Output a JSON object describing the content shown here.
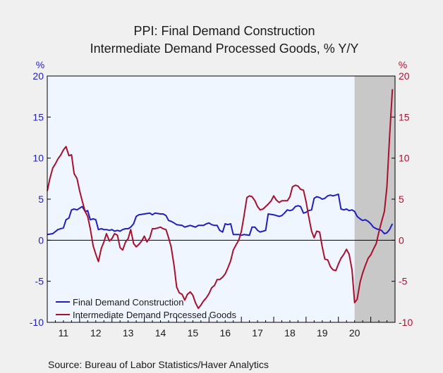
{
  "chart_data": {
    "type": "line",
    "title": "PPI: Final Demand Construction",
    "subtitle": "Intermediate Demand Processed Goods, % Y/Y",
    "y_unit_left": "%",
    "y_unit_right": "%",
    "ylim": [
      -10,
      20
    ],
    "yticks": [
      -10,
      -5,
      0,
      5,
      10,
      15,
      20
    ],
    "xlim": [
      2010.5,
      2021.25
    ],
    "xticks": [
      {
        "label": "11",
        "at": 2011.0
      },
      {
        "label": "12",
        "at": 2012.0
      },
      {
        "label": "13",
        "at": 2013.0
      },
      {
        "label": "14",
        "at": 2014.0
      },
      {
        "label": "15",
        "at": 2015.0
      },
      {
        "label": "16",
        "at": 2016.0
      },
      {
        "label": "17",
        "at": 2017.0
      },
      {
        "label": "18",
        "at": 2018.0
      },
      {
        "label": "19",
        "at": 2019.0
      },
      {
        "label": "20",
        "at": 2020.0
      }
    ],
    "recession_shading": [
      2020.0,
      2021.25
    ],
    "legend_position": "bottom-left",
    "series": [
      {
        "name": "Final Demand Construction",
        "color": "#1f1fbf",
        "points": [
          [
            2010.5,
            0.7
          ],
          [
            2010.67,
            0.8
          ],
          [
            2010.83,
            1.3
          ],
          [
            2011.0,
            1.5
          ],
          [
            2011.08,
            2.5
          ],
          [
            2011.17,
            2.7
          ],
          [
            2011.25,
            3.7
          ],
          [
            2011.33,
            3.8
          ],
          [
            2011.42,
            3.7
          ],
          [
            2011.5,
            3.9
          ],
          [
            2011.58,
            4.1
          ],
          [
            2011.67,
            3.5
          ],
          [
            2011.75,
            3.6
          ],
          [
            2011.83,
            2.5
          ],
          [
            2011.92,
            2.6
          ],
          [
            2012.0,
            2.5
          ],
          [
            2012.08,
            1.3
          ],
          [
            2012.17,
            1.4
          ],
          [
            2012.25,
            1.3
          ],
          [
            2012.33,
            1.3
          ],
          [
            2012.42,
            1.2
          ],
          [
            2012.5,
            1.3
          ],
          [
            2012.58,
            1.1
          ],
          [
            2012.67,
            1.2
          ],
          [
            2012.75,
            1.1
          ],
          [
            2012.83,
            1.3
          ],
          [
            2012.92,
            1.4
          ],
          [
            2013.0,
            1.4
          ],
          [
            2013.08,
            1.6
          ],
          [
            2013.17,
            2.0
          ],
          [
            2013.25,
            2.9
          ],
          [
            2013.33,
            3.1
          ],
          [
            2013.5,
            3.2
          ],
          [
            2013.67,
            3.3
          ],
          [
            2013.75,
            3.1
          ],
          [
            2013.83,
            3.3
          ],
          [
            2014.0,
            3.2
          ],
          [
            2014.08,
            3.2
          ],
          [
            2014.17,
            3.0
          ],
          [
            2014.25,
            2.4
          ],
          [
            2014.33,
            2.3
          ],
          [
            2014.42,
            2.1
          ],
          [
            2014.5,
            1.9
          ],
          [
            2014.67,
            1.8
          ],
          [
            2014.75,
            1.6
          ],
          [
            2014.83,
            1.7
          ],
          [
            2014.92,
            1.8
          ],
          [
            2015.0,
            1.7
          ],
          [
            2015.08,
            1.6
          ],
          [
            2015.17,
            1.8
          ],
          [
            2015.33,
            1.8
          ],
          [
            2015.42,
            2.0
          ],
          [
            2015.5,
            2.1
          ],
          [
            2015.58,
            1.9
          ],
          [
            2015.67,
            1.8
          ],
          [
            2015.75,
            1.8
          ],
          [
            2015.83,
            1.2
          ],
          [
            2015.92,
            1.0
          ],
          [
            2016.0,
            2.0
          ],
          [
            2016.08,
            1.9
          ],
          [
            2016.17,
            2.0
          ],
          [
            2016.25,
            0.7
          ],
          [
            2016.42,
            0.7
          ],
          [
            2016.5,
            0.6
          ],
          [
            2016.58,
            0.7
          ],
          [
            2016.75,
            0.6
          ],
          [
            2016.83,
            1.6
          ],
          [
            2016.92,
            1.6
          ],
          [
            2017.0,
            1.2
          ],
          [
            2017.08,
            1.0
          ],
          [
            2017.17,
            1.1
          ],
          [
            2017.25,
            1.2
          ],
          [
            2017.33,
            3.2
          ],
          [
            2017.5,
            3.1
          ],
          [
            2017.67,
            2.9
          ],
          [
            2017.75,
            3.0
          ],
          [
            2017.83,
            3.3
          ],
          [
            2017.92,
            3.7
          ],
          [
            2018.0,
            3.6
          ],
          [
            2018.08,
            3.7
          ],
          [
            2018.17,
            4.1
          ],
          [
            2018.25,
            4.2
          ],
          [
            2018.33,
            4.1
          ],
          [
            2018.42,
            3.3
          ],
          [
            2018.5,
            3.4
          ],
          [
            2018.58,
            3.6
          ],
          [
            2018.67,
            3.7
          ],
          [
            2018.75,
            5.1
          ],
          [
            2018.83,
            5.3
          ],
          [
            2018.92,
            5.2
          ],
          [
            2019.0,
            5.0
          ],
          [
            2019.08,
            5.1
          ],
          [
            2019.17,
            5.4
          ],
          [
            2019.25,
            5.5
          ],
          [
            2019.33,
            5.4
          ],
          [
            2019.42,
            5.5
          ],
          [
            2019.5,
            5.6
          ],
          [
            2019.58,
            3.8
          ],
          [
            2019.67,
            3.7
          ],
          [
            2019.75,
            3.8
          ],
          [
            2019.83,
            3.6
          ],
          [
            2019.92,
            3.7
          ],
          [
            2020.0,
            3.5
          ],
          [
            2020.08,
            2.9
          ],
          [
            2020.17,
            2.6
          ],
          [
            2020.25,
            2.4
          ],
          [
            2020.33,
            2.5
          ],
          [
            2020.42,
            2.3
          ],
          [
            2020.5,
            2.0
          ],
          [
            2020.58,
            1.6
          ],
          [
            2020.67,
            1.4
          ],
          [
            2020.75,
            1.3
          ],
          [
            2020.83,
            1.2
          ],
          [
            2020.92,
            0.8
          ],
          [
            2021.0,
            0.9
          ],
          [
            2021.08,
            1.3
          ],
          [
            2021.17,
            2.0
          ]
        ]
      },
      {
        "name": "Intermediate Demand Processed Goods",
        "color": "#a8102e",
        "points": [
          [
            2010.5,
            6.0
          ],
          [
            2010.58,
            7.5
          ],
          [
            2010.67,
            8.8
          ],
          [
            2010.75,
            9.3
          ],
          [
            2010.83,
            9.9
          ],
          [
            2010.92,
            10.4
          ],
          [
            2011.0,
            11.0
          ],
          [
            2011.08,
            11.4
          ],
          [
            2011.17,
            10.3
          ],
          [
            2011.25,
            10.4
          ],
          [
            2011.33,
            8.1
          ],
          [
            2011.42,
            7.5
          ],
          [
            2011.5,
            6.0
          ],
          [
            2011.58,
            4.8
          ],
          [
            2011.67,
            3.5
          ],
          [
            2011.75,
            2.9
          ],
          [
            2011.83,
            1.4
          ],
          [
            2011.92,
            -0.7
          ],
          [
            2012.0,
            -1.7
          ],
          [
            2012.08,
            -2.6
          ],
          [
            2012.17,
            -1.0
          ],
          [
            2012.25,
            -0.2
          ],
          [
            2012.33,
            0.8
          ],
          [
            2012.42,
            -0.1
          ],
          [
            2012.5,
            0.2
          ],
          [
            2012.58,
            0.8
          ],
          [
            2012.67,
            0.6
          ],
          [
            2012.75,
            -0.9
          ],
          [
            2012.83,
            -1.2
          ],
          [
            2012.92,
            -0.2
          ],
          [
            2013.0,
            0.2
          ],
          [
            2013.08,
            1.3
          ],
          [
            2013.17,
            -0.4
          ],
          [
            2013.25,
            -0.8
          ],
          [
            2013.33,
            -0.5
          ],
          [
            2013.42,
            -0.1
          ],
          [
            2013.5,
            0.5
          ],
          [
            2013.58,
            -0.2
          ],
          [
            2013.67,
            0.3
          ],
          [
            2013.75,
            1.4
          ],
          [
            2013.83,
            1.4
          ],
          [
            2013.92,
            1.5
          ],
          [
            2014.0,
            1.6
          ],
          [
            2014.08,
            1.4
          ],
          [
            2014.17,
            1.3
          ],
          [
            2014.25,
            0.3
          ],
          [
            2014.33,
            -0.8
          ],
          [
            2014.42,
            -3.1
          ],
          [
            2014.5,
            -5.7
          ],
          [
            2014.58,
            -6.4
          ],
          [
            2014.67,
            -6.6
          ],
          [
            2014.75,
            -7.3
          ],
          [
            2014.83,
            -6.6
          ],
          [
            2014.92,
            -6.3
          ],
          [
            2015.0,
            -6.7
          ],
          [
            2015.08,
            -7.6
          ],
          [
            2015.17,
            -8.3
          ],
          [
            2015.25,
            -7.9
          ],
          [
            2015.33,
            -7.4
          ],
          [
            2015.42,
            -7.0
          ],
          [
            2015.5,
            -6.5
          ],
          [
            2015.58,
            -5.8
          ],
          [
            2015.67,
            -5.5
          ],
          [
            2015.75,
            -4.8
          ],
          [
            2015.83,
            -4.8
          ],
          [
            2015.92,
            -4.5
          ],
          [
            2016.0,
            -4.1
          ],
          [
            2016.08,
            -3.4
          ],
          [
            2016.17,
            -2.5
          ],
          [
            2016.25,
            -1.2
          ],
          [
            2016.33,
            -0.6
          ],
          [
            2016.42,
            0.0
          ],
          [
            2016.5,
            1.1
          ],
          [
            2016.58,
            2.9
          ],
          [
            2016.67,
            5.2
          ],
          [
            2016.75,
            5.4
          ],
          [
            2016.83,
            5.3
          ],
          [
            2016.92,
            4.8
          ],
          [
            2017.0,
            4.1
          ],
          [
            2017.08,
            3.7
          ],
          [
            2017.17,
            3.8
          ],
          [
            2017.25,
            4.1
          ],
          [
            2017.33,
            4.4
          ],
          [
            2017.42,
            4.8
          ],
          [
            2017.5,
            5.4
          ],
          [
            2017.58,
            4.9
          ],
          [
            2017.67,
            4.6
          ],
          [
            2017.75,
            4.8
          ],
          [
            2017.92,
            4.8
          ],
          [
            2018.0,
            5.3
          ],
          [
            2018.08,
            6.5
          ],
          [
            2018.17,
            6.7
          ],
          [
            2018.25,
            6.6
          ],
          [
            2018.33,
            6.2
          ],
          [
            2018.42,
            6.1
          ],
          [
            2018.5,
            4.7
          ],
          [
            2018.58,
            2.9
          ],
          [
            2018.67,
            1.1
          ],
          [
            2018.75,
            0.3
          ],
          [
            2018.83,
            1.1
          ],
          [
            2018.92,
            1.0
          ],
          [
            2019.0,
            -0.8
          ],
          [
            2019.08,
            -2.3
          ],
          [
            2019.17,
            -2.4
          ],
          [
            2019.25,
            -3.2
          ],
          [
            2019.33,
            -3.6
          ],
          [
            2019.42,
            -3.7
          ],
          [
            2019.5,
            -2.9
          ],
          [
            2019.58,
            -2.2
          ],
          [
            2019.67,
            -1.7
          ],
          [
            2019.75,
            -1.1
          ],
          [
            2019.83,
            -1.7
          ],
          [
            2019.92,
            -3.6
          ],
          [
            2020.0,
            -7.6
          ],
          [
            2020.08,
            -7.2
          ],
          [
            2020.17,
            -5.1
          ],
          [
            2020.25,
            -4.0
          ],
          [
            2020.33,
            -3.1
          ],
          [
            2020.42,
            -2.2
          ],
          [
            2020.5,
            -1.8
          ],
          [
            2020.58,
            -1.1
          ],
          [
            2020.67,
            -0.4
          ],
          [
            2020.75,
            1.0
          ],
          [
            2020.83,
            2.2
          ],
          [
            2020.92,
            3.5
          ],
          [
            2021.0,
            6.5
          ],
          [
            2021.08,
            12.5
          ],
          [
            2021.17,
            18.4
          ]
        ]
      }
    ],
    "source": "Source:  Bureau of Labor Statistics/Haver Analytics"
  }
}
